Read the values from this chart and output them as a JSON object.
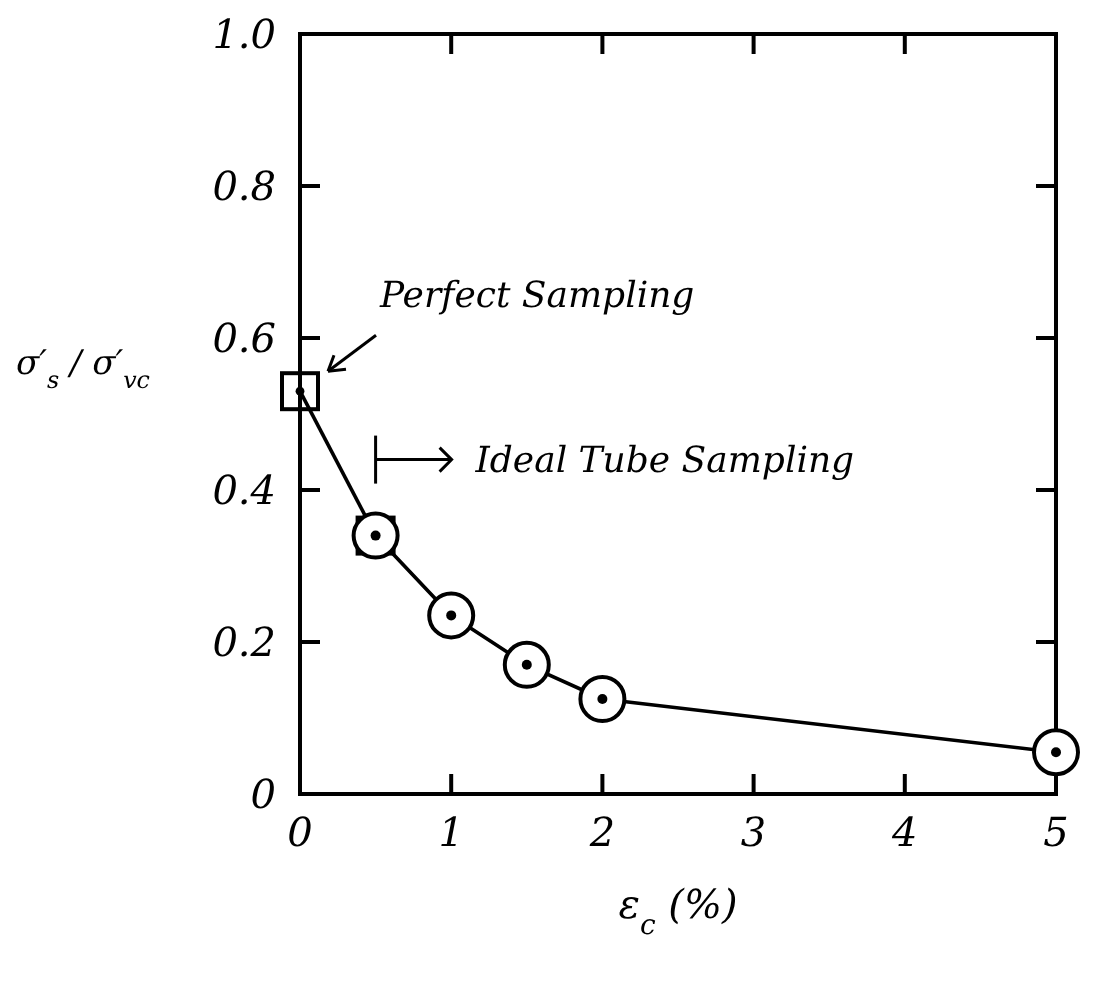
{
  "chart_data": {
    "type": "line",
    "xlabel": "ε$_{c}$ (%)",
    "ylabel": "σ′$_{s}$ / σ′$_{vc}$",
    "xlim": [
      0,
      5
    ],
    "xticks": [
      0,
      1,
      2,
      3,
      4,
      5
    ],
    "ylim": [
      0,
      1
    ],
    "yticks": [
      0,
      0.2,
      0.4,
      0.6,
      0.8,
      {
        "value": 1,
        "label": "1.0"
      }
    ],
    "grid": false,
    "series": [
      {
        "type": "line",
        "color": "#000000",
        "marker": "square",
        "x": [
          0,
          0.5
        ],
        "values": [
          0.53,
          0.34
        ]
      },
      {
        "color": "#000000",
        "marker": "circle",
        "x": [
          0.5,
          1,
          1.5,
          2,
          5
        ],
        "values": [
          0.34,
          0.235,
          0.17,
          0.125,
          0.055
        ]
      }
    ],
    "annotations": [
      "Perfect Sampling",
      "Ideal Tube Sampling"
    ]
  }
}
